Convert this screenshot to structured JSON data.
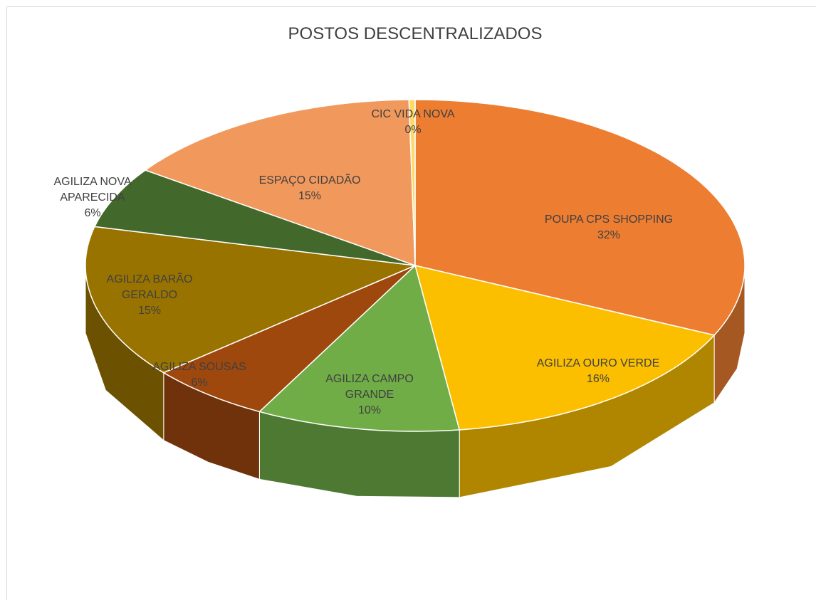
{
  "chart_data": {
    "type": "pie3d",
    "title": "POSTOS DESCENTRALIZADOS",
    "categories": [
      "POUPA CPS SHOPPING",
      "AGILIZA OURO VERDE",
      "AGILIZA CAMPO GRANDE",
      "AGILIZA SOUSAS",
      "AGILIZA BARÃO GERALDO",
      "AGILIZA NOVA APARECIDA",
      "ESPAÇO CIDADÃO",
      "CIC VIDA NOVA"
    ],
    "values": [
      32,
      16,
      10,
      6,
      15,
      6,
      15,
      0.3
    ],
    "value_labels": [
      "32%",
      "16%",
      "10%",
      "6%",
      "15%",
      "6%",
      "15%",
      "0%"
    ],
    "colors": [
      "#ed7d31",
      "#fbbf00",
      "#70ad47",
      "#9e480e",
      "#997300",
      "#43682b",
      "#f1995c",
      "#ffd966"
    ]
  }
}
